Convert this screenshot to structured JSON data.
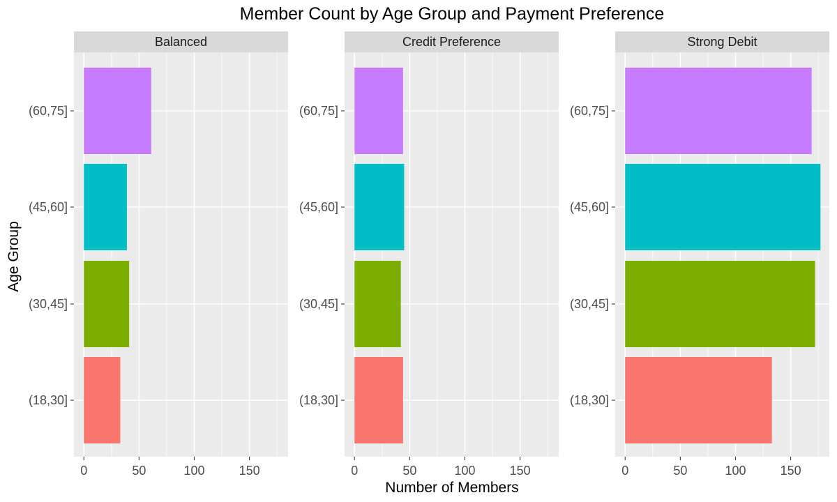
{
  "chart_data": {
    "type": "bar",
    "orientation": "horizontal",
    "title": "Member Count by Age Group and Payment Preference",
    "xlabel": "Number of Members",
    "ylabel": "Age Group",
    "xlim": [
      -9,
      185
    ],
    "xticks": [
      0,
      50,
      100,
      150
    ],
    "xtick_labels": [
      "0",
      "50",
      "100",
      "150"
    ],
    "categories": [
      "(18,30]",
      "(30,45]",
      "(45,60]",
      "(60,75]"
    ],
    "category_colors": [
      "#F8766D",
      "#7CAE00",
      "#00BFC4",
      "#C77CFF"
    ],
    "panel_background": "#EBEBEB",
    "strip_background": "#D9D9D9",
    "grid": true,
    "legend": "none",
    "facets": [
      {
        "name": "Balanced",
        "values": [
          33,
          41,
          39,
          61
        ]
      },
      {
        "name": "Credit Preference",
        "values": [
          44,
          42,
          45,
          44
        ]
      },
      {
        "name": "Strong Debit",
        "values": [
          133,
          172,
          177,
          169
        ]
      }
    ]
  }
}
